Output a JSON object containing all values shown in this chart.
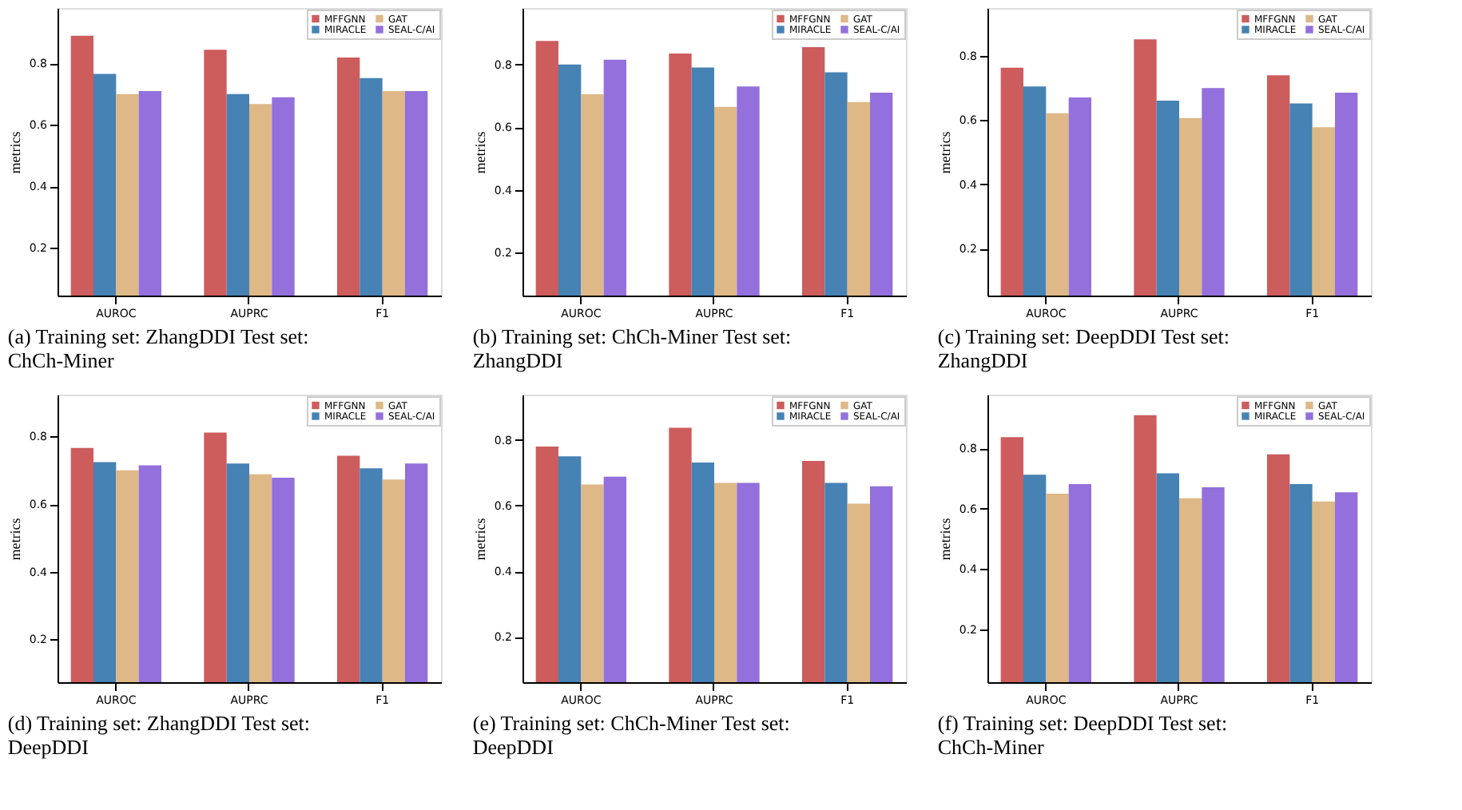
{
  "chart_data": [
    {
      "type": "bar",
      "title": "(a) Training set: ZhangDDI Test set: ChCh-Miner",
      "ylabel": "metrics",
      "categories": [
        "AUROC",
        "AUPRC",
        "F1"
      ],
      "ylim": [
        0.045,
        0.98
      ],
      "yticks": [
        0.2,
        0.4,
        0.6,
        0.8
      ],
      "grid": false,
      "legend": "top right",
      "series": [
        {
          "name": "MFFGNN",
          "color": "#cd5c5c",
          "values": [
            0.89,
            0.844,
            0.819
          ]
        },
        {
          "name": "MIRACLE",
          "color": "#4682b4",
          "values": [
            0.766,
            0.7,
            0.752
          ]
        },
        {
          "name": "GAT",
          "color": "#deb887",
          "values": [
            0.7,
            0.668,
            0.71
          ]
        },
        {
          "name": "SEAL-C/AI",
          "color": "#9370db",
          "values": [
            0.71,
            0.69,
            0.71
          ]
        }
      ]
    },
    {
      "type": "bar",
      "title": "(b) Training set: ChCh-Miner Test set: ZhangDDI",
      "ylabel": "metrics",
      "categories": [
        "AUROC",
        "AUPRC",
        "F1"
      ],
      "ylim": [
        0.063,
        0.98
      ],
      "yticks": [
        0.2,
        0.4,
        0.6,
        0.8
      ],
      "grid": false,
      "legend": "top right",
      "series": [
        {
          "name": "MFFGNN",
          "color": "#cd5c5c",
          "values": [
            0.875,
            0.835,
            0.855
          ]
        },
        {
          "name": "MIRACLE",
          "color": "#4682b4",
          "values": [
            0.8,
            0.79,
            0.775
          ]
        },
        {
          "name": "GAT",
          "color": "#deb887",
          "values": [
            0.705,
            0.665,
            0.68
          ]
        },
        {
          "name": "SEAL-C/AI",
          "color": "#9370db",
          "values": [
            0.815,
            0.73,
            0.71
          ]
        }
      ]
    },
    {
      "type": "bar",
      "title": "(c) Training set: DeepDDI Test set: ZhangDDI",
      "ylabel": "metrics",
      "categories": [
        "AUROC",
        "AUPRC",
        "F1"
      ],
      "ylim": [
        0.053,
        0.95
      ],
      "yticks": [
        0.2,
        0.4,
        0.6,
        0.8
      ],
      "grid": false,
      "legend": "top right",
      "series": [
        {
          "name": "MFFGNN",
          "color": "#cd5c5c",
          "values": [
            0.764,
            0.852,
            0.74
          ]
        },
        {
          "name": "MIRACLE",
          "color": "#4682b4",
          "values": [
            0.705,
            0.661,
            0.652
          ]
        },
        {
          "name": "GAT",
          "color": "#deb887",
          "values": [
            0.622,
            0.607,
            0.578
          ]
        },
        {
          "name": "SEAL-C/AI",
          "color": "#9370db",
          "values": [
            0.671,
            0.7,
            0.686
          ]
        }
      ]
    },
    {
      "type": "bar",
      "title": "(d) Training set: ZhangDDI Test set: DeepDDI",
      "ylabel": "metrics",
      "categories": [
        "AUROC",
        "AUPRC",
        "F1"
      ],
      "ylim": [
        0.073,
        0.924
      ],
      "yticks": [
        0.2,
        0.4,
        0.6,
        0.8
      ],
      "grid": false,
      "legend": "top right",
      "series": [
        {
          "name": "MFFGNN",
          "color": "#cd5c5c",
          "values": [
            0.766,
            0.812,
            0.743
          ]
        },
        {
          "name": "MIRACLE",
          "color": "#4682b4",
          "values": [
            0.724,
            0.72,
            0.706
          ]
        },
        {
          "name": "GAT",
          "color": "#deb887",
          "values": [
            0.7,
            0.688,
            0.673
          ]
        },
        {
          "name": "SEAL-C/AI",
          "color": "#9370db",
          "values": [
            0.715,
            0.678,
            0.72
          ]
        }
      ]
    },
    {
      "type": "bar",
      "title": "(e) Training set: ChCh-Miner Test set: DeepDDI",
      "ylabel": "metrics",
      "categories": [
        "AUROC",
        "AUPRC",
        "F1"
      ],
      "ylim": [
        0.062,
        0.938
      ],
      "yticks": [
        0.2,
        0.4,
        0.6,
        0.8
      ],
      "grid": false,
      "legend": "top right",
      "series": [
        {
          "name": "MFFGNN",
          "color": "#cd5c5c",
          "values": [
            0.78,
            0.837,
            0.736
          ]
        },
        {
          "name": "MIRACLE",
          "color": "#4682b4",
          "values": [
            0.75,
            0.731,
            0.669
          ]
        },
        {
          "name": "GAT",
          "color": "#deb887",
          "values": [
            0.664,
            0.669,
            0.606
          ]
        },
        {
          "name": "SEAL-C/AI",
          "color": "#9370db",
          "values": [
            0.688,
            0.669,
            0.659
          ]
        }
      ]
    },
    {
      "type": "bar",
      "title": "(f) Training set: DeepDDI Test set: ChCh-Miner",
      "ylabel": "metrics",
      "categories": [
        "AUROC",
        "AUPRC",
        "F1"
      ],
      "ylim": [
        0.024,
        0.979
      ],
      "yticks": [
        0.2,
        0.4,
        0.6,
        0.8
      ],
      "grid": false,
      "legend": "top right",
      "series": [
        {
          "name": "MFFGNN",
          "color": "#cd5c5c",
          "values": [
            0.838,
            0.911,
            0.781
          ]
        },
        {
          "name": "MIRACLE",
          "color": "#4682b4",
          "values": [
            0.713,
            0.718,
            0.682
          ]
        },
        {
          "name": "GAT",
          "color": "#deb887",
          "values": [
            0.65,
            0.635,
            0.624
          ]
        },
        {
          "name": "SEAL-C/AI",
          "color": "#9370db",
          "values": [
            0.682,
            0.671,
            0.655
          ]
        }
      ]
    }
  ]
}
